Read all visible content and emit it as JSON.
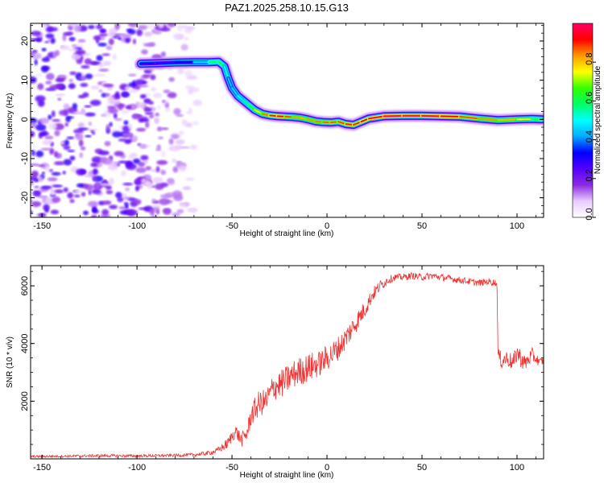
{
  "title": "PAZ1.2025.258.10.15.G13",
  "chart_data": [
    {
      "type": "heatmap",
      "name": "spectrogram",
      "xlabel": "Height of straight line (km)",
      "ylabel": "Frequency (Hz)",
      "xlim": [
        -156,
        114
      ],
      "ylim": [
        -25,
        24.5
      ],
      "xticks": [
        -150,
        -100,
        -50,
        0,
        50,
        100
      ],
      "yticks": [
        -20,
        -10,
        0,
        10,
        20
      ],
      "colorbar": {
        "label": "Normalized spectral amplitude",
        "range": [
          0,
          1
        ],
        "ticks": [
          "0.0",
          "0.2",
          "0.4",
          "0.6",
          "0.8"
        ],
        "tick_values": [
          0.0,
          0.2,
          0.4,
          0.6,
          0.8
        ],
        "colors": [
          "#ffffff",
          "#e8ccff",
          "#8a2be2",
          "#5500ff",
          "#0000ff",
          "#00aaff",
          "#00ffff",
          "#00ff66",
          "#33ff00",
          "#ffff00",
          "#ff9900",
          "#ff0000",
          "#ff0066"
        ]
      },
      "ridge": {
        "x": [
          -98,
          -90,
          -80,
          -70,
          -62,
          -57,
          -54,
          -52,
          -50,
          -47,
          -44,
          -41,
          -38,
          -34,
          -30,
          -26,
          -22,
          -18,
          -14,
          -10,
          -6,
          -2,
          2,
          6,
          10,
          14,
          18,
          22,
          30,
          40,
          50,
          60,
          70,
          80,
          90,
          100,
          108,
          113
        ],
        "y": [
          14.2,
          14.3,
          14.5,
          14.6,
          14.6,
          14.7,
          13.5,
          10.5,
          8.0,
          6.0,
          4.8,
          3.6,
          2.4,
          1.4,
          1.0,
          0.8,
          0.7,
          0.6,
          0.4,
          0.0,
          -0.5,
          -0.7,
          -0.8,
          -0.6,
          -1.2,
          -1.4,
          -0.6,
          0.2,
          0.8,
          0.9,
          0.9,
          0.8,
          0.7,
          0.2,
          -0.2,
          0.0,
          0.1,
          0.0
        ],
        "amplitude": [
          0.3,
          0.3,
          0.3,
          0.35,
          0.6,
          0.65,
          0.6,
          0.45,
          0.45,
          0.5,
          0.55,
          0.6,
          0.7,
          0.8,
          0.9,
          0.92,
          0.9,
          0.85,
          0.8,
          0.82,
          0.85,
          0.85,
          0.88,
          0.86,
          0.9,
          0.9,
          0.9,
          0.95,
          0.98,
          0.98,
          0.98,
          0.96,
          0.9,
          0.85,
          0.82,
          0.8,
          0.7,
          0.6
        ]
      },
      "noise_region_x": [
        -156,
        -65
      ]
    },
    {
      "type": "line",
      "name": "snr",
      "xlabel": "Height of straight line (km)",
      "ylabel": "SNR (10 * v/v)",
      "xlim": [
        -156,
        114
      ],
      "ylim": [
        0,
        6700
      ],
      "xticks": [
        -150,
        -100,
        -50,
        0,
        50,
        100
      ],
      "yticks": [
        2000,
        4000,
        6000
      ],
      "color": "#ee3333",
      "x": [
        -156,
        -140,
        -120,
        -100,
        -80,
        -70,
        -62,
        -58,
        -55,
        -52,
        -50,
        -48,
        -45,
        -42,
        -40,
        -36,
        -32,
        -28,
        -24,
        -20,
        -16,
        -12,
        -8,
        -4,
        0,
        4,
        8,
        12,
        16,
        20,
        24,
        28,
        32,
        36,
        40,
        45,
        50,
        55,
        60,
        65,
        70,
        75,
        80,
        85,
        89,
        89.5,
        90,
        92,
        95,
        98,
        100,
        104,
        108,
        112,
        114
      ],
      "y": [
        80,
        90,
        110,
        100,
        120,
        140,
        200,
        280,
        400,
        550,
        800,
        950,
        650,
        900,
        1500,
        1900,
        2000,
        2500,
        2600,
        2800,
        3000,
        3100,
        3200,
        3300,
        3500,
        3700,
        4000,
        4400,
        4800,
        5200,
        5700,
        6000,
        6200,
        6300,
        6300,
        6350,
        6300,
        6350,
        6300,
        6250,
        6200,
        6150,
        6100,
        6150,
        6100,
        6000,
        3600,
        3400,
        3500,
        3300,
        3700,
        3300,
        3600,
        3350,
        3400
      ],
      "noise_amplitude": [
        40,
        40,
        50,
        50,
        50,
        60,
        80,
        100,
        150,
        200,
        200,
        250,
        250,
        300,
        400,
        450,
        450,
        500,
        500,
        500,
        500,
        500,
        500,
        450,
        450,
        450,
        400,
        400,
        350,
        300,
        250,
        200,
        150,
        120,
        120,
        120,
        120,
        120,
        120,
        120,
        120,
        120,
        120,
        120,
        120,
        120,
        250,
        300,
        300,
        300,
        350,
        300,
        250,
        150,
        150
      ]
    }
  ]
}
